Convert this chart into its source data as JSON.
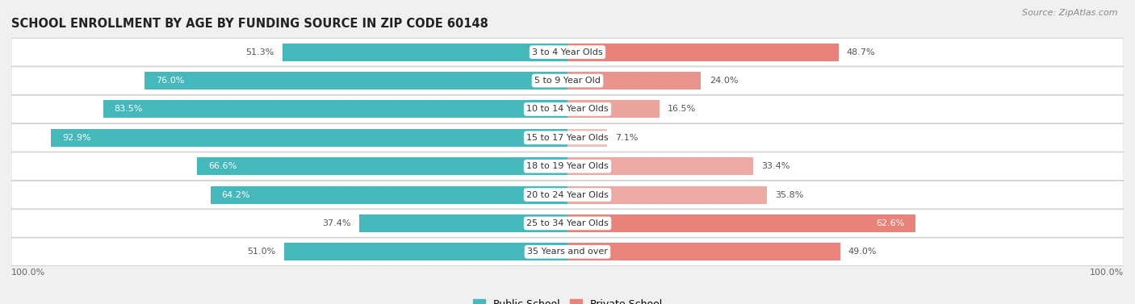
{
  "title": "SCHOOL ENROLLMENT BY AGE BY FUNDING SOURCE IN ZIP CODE 60148",
  "source": "Source: ZipAtlas.com",
  "categories": [
    "3 to 4 Year Olds",
    "5 to 9 Year Old",
    "10 to 14 Year Olds",
    "15 to 17 Year Olds",
    "18 to 19 Year Olds",
    "20 to 24 Year Olds",
    "25 to 34 Year Olds",
    "35 Years and over"
  ],
  "public_values": [
    51.3,
    76.0,
    83.5,
    92.9,
    66.6,
    64.2,
    37.4,
    51.0
  ],
  "private_values": [
    48.7,
    24.0,
    16.5,
    7.1,
    33.4,
    35.8,
    62.6,
    49.0
  ],
  "public_color": "#45b8bc",
  "private_colors": [
    "#e8827a",
    "#e9948d",
    "#eba49e",
    "#f0bfbc",
    "#eda9a4",
    "#edaaa5",
    "#e8827a",
    "#e8847c"
  ],
  "bg_color": "#f0f0f0",
  "title_fontsize": 10.5,
  "source_fontsize": 8,
  "label_fontsize": 8,
  "bar_height": 0.62,
  "x_axis_min": -100,
  "x_axis_max": 100
}
